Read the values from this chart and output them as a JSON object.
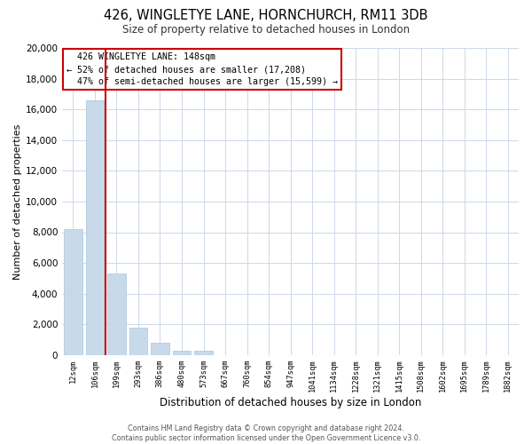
{
  "title": "426, WINGLETYE LANE, HORNCHURCH, RM11 3DB",
  "subtitle": "Size of property relative to detached houses in London",
  "xlabel": "Distribution of detached houses by size in London",
  "ylabel": "Number of detached properties",
  "bar_color": "#c8daea",
  "bar_edge_color": "#a8c4dc",
  "grid_color": "#cdd8e8",
  "background_color": "#ffffff",
  "annotation_box_color": "#ffffff",
  "annotation_box_edge": "#cc0000",
  "vline_color": "#cc0000",
  "categories": [
    "12sqm",
    "106sqm",
    "199sqm",
    "293sqm",
    "386sqm",
    "480sqm",
    "573sqm",
    "667sqm",
    "760sqm",
    "854sqm",
    "947sqm",
    "1041sqm",
    "1134sqm",
    "1228sqm",
    "1321sqm",
    "1415sqm",
    "1508sqm",
    "1602sqm",
    "1695sqm",
    "1789sqm",
    "1882sqm"
  ],
  "values": [
    8200,
    16600,
    5300,
    1800,
    800,
    300,
    300,
    0,
    0,
    0,
    0,
    0,
    0,
    0,
    0,
    0,
    0,
    0,
    0,
    0,
    0
  ],
  "ylim": [
    0,
    20000
  ],
  "yticks": [
    0,
    2000,
    4000,
    6000,
    8000,
    10000,
    12000,
    14000,
    16000,
    18000,
    20000
  ],
  "property_name": "426 WINGLETYE LANE",
  "property_size": "148sqm",
  "pct_smaller": "52%",
  "n_smaller": "17,208",
  "pct_larger": "47%",
  "n_larger": "15,599",
  "vline_x_index": 1.5,
  "footer1": "Contains HM Land Registry data © Crown copyright and database right 2024.",
  "footer2": "Contains public sector information licensed under the Open Government Licence v3.0."
}
